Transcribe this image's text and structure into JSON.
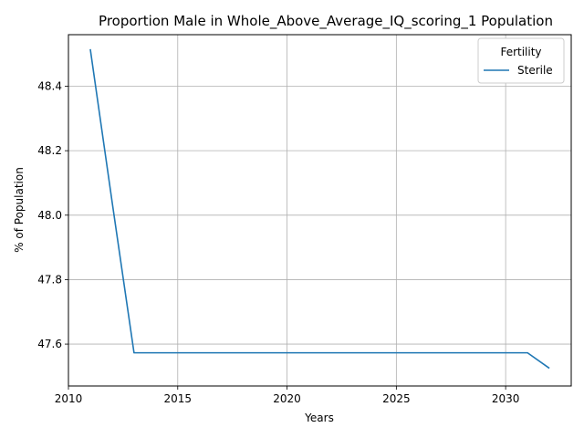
{
  "chart_data": {
    "type": "line",
    "title": "Proportion Male in Whole_Above_Average_IQ_scoring_1 Population",
    "xlabel": "Years",
    "ylabel": "% of Population",
    "xlim": [
      2010,
      2033
    ],
    "ylim": [
      47.47,
      48.56
    ],
    "xticks": [
      2010,
      2015,
      2020,
      2025,
      2030
    ],
    "yticks": [
      47.6,
      47.8,
      48.0,
      48.2,
      48.4
    ],
    "ytick_labels": [
      "47.6",
      "47.8",
      "48.0",
      "48.2",
      "48.4"
    ],
    "grid": true,
    "legend": {
      "title": "Fertility",
      "position": "top-right"
    },
    "series": [
      {
        "name": "Sterile",
        "color": "#1f77b4",
        "x": [
          2011,
          2012,
          2013,
          2014,
          2015,
          2016,
          2017,
          2018,
          2019,
          2020,
          2021,
          2022,
          2023,
          2024,
          2025,
          2026,
          2027,
          2028,
          2029,
          2030,
          2031,
          2032
        ],
        "y": [
          48.515,
          48.04,
          47.573,
          47.573,
          47.573,
          47.573,
          47.573,
          47.573,
          47.573,
          47.573,
          47.573,
          47.573,
          47.573,
          47.573,
          47.573,
          47.573,
          47.573,
          47.573,
          47.573,
          47.573,
          47.573,
          47.525
        ]
      }
    ]
  }
}
